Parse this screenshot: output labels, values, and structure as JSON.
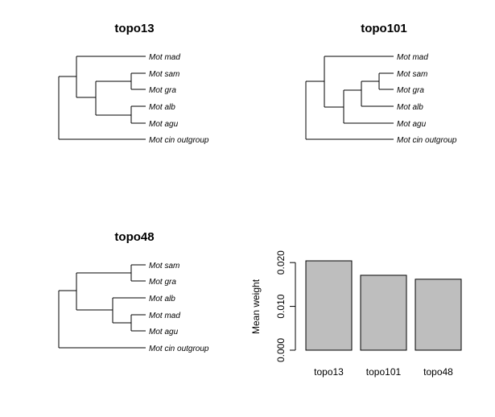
{
  "trees": [
    {
      "title": "topo13",
      "tips": [
        "Mot mad",
        "Mot sam",
        "Mot gra",
        "Mot alb",
        "Mot agu",
        "Mot cin outgroup"
      ],
      "newick": "((Mot mad,((Mot sam,Mot gra),(Mot alb,Mot agu))),Mot cin outgroup)"
    },
    {
      "title": "topo101",
      "tips": [
        "Mot mad",
        "Mot sam",
        "Mot gra",
        "Mot alb",
        "Mot agu",
        "Mot cin outgroup"
      ],
      "newick": "((Mot mad,(((Mot sam,Mot gra),Mot alb),Mot agu)),Mot cin outgroup)"
    },
    {
      "title": "topo48",
      "tips": [
        "Mot sam",
        "Mot gra",
        "Mot alb",
        "Mot mad",
        "Mot agu",
        "Mot cin outgroup"
      ],
      "newick": "(((Mot sam,Mot gra),(Mot alb,(Mot mad,Mot agu))),Mot cin outgroup)"
    }
  ],
  "chart_data": {
    "type": "bar",
    "categories": [
      "topo13",
      "topo101",
      "topo48"
    ],
    "values": [
      0.0204,
      0.0171,
      0.0162
    ],
    "title": "",
    "xlabel": "",
    "ylabel": "Mean weight",
    "ylim": [
      0,
      0.0204
    ],
    "yticks": [
      "0.000",
      "0.010",
      "0.020"
    ],
    "ytick_values": [
      0,
      0.01,
      0.02
    ],
    "bar_color": "#bebebe",
    "grid": false
  }
}
